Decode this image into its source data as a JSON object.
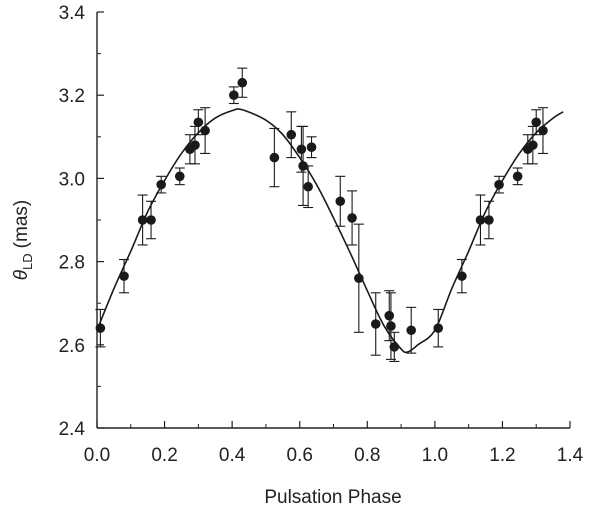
{
  "chart_data": {
    "type": "scatter",
    "xlabel": "Pulsation Phase",
    "ylabel_symbol": "θ",
    "ylabel_subscript": "LD",
    "ylabel_unit": "(mas)",
    "xlim": [
      0.0,
      1.4
    ],
    "ylim": [
      2.4,
      3.4
    ],
    "x_ticks": [
      "0.0",
      "0.2",
      "0.4",
      "0.6",
      "0.8",
      "1.0",
      "1.2",
      "1.4"
    ],
    "y_ticks": [
      "2.4",
      "2.6",
      "2.8",
      "3.0",
      "3.2",
      "3.4"
    ],
    "grid": false,
    "legend": "none",
    "colors": {
      "points": "#1a1a1a",
      "curve": "#1a1a1a",
      "axes": "#222222"
    },
    "points": [
      {
        "x": 0.01,
        "y": 2.64,
        "err": 0.045
      },
      {
        "x": 0.08,
        "y": 2.765,
        "err": 0.04
      },
      {
        "x": 0.135,
        "y": 2.9,
        "err": 0.06
      },
      {
        "x": 0.16,
        "y": 2.9,
        "err": 0.045
      },
      {
        "x": 0.19,
        "y": 2.985,
        "err": 0.02
      },
      {
        "x": 0.245,
        "y": 3.005,
        "err": 0.02
      },
      {
        "x": 0.275,
        "y": 3.07,
        "err": 0.035
      },
      {
        "x": 0.29,
        "y": 3.08,
        "err": 0.045
      },
      {
        "x": 0.3,
        "y": 3.135,
        "err": 0.03
      },
      {
        "x": 0.32,
        "y": 3.115,
        "err": 0.055
      },
      {
        "x": 0.405,
        "y": 3.2,
        "err": 0.02
      },
      {
        "x": 0.43,
        "y": 3.23,
        "err": 0.035
      },
      {
        "x": 0.525,
        "y": 3.05,
        "err": 0.07
      },
      {
        "x": 0.575,
        "y": 3.105,
        "err": 0.055
      },
      {
        "x": 0.605,
        "y": 3.07,
        "err": 0.055
      },
      {
        "x": 0.61,
        "y": 3.03,
        "err": 0.095
      },
      {
        "x": 0.625,
        "y": 2.98,
        "err": 0.05
      },
      {
        "x": 0.635,
        "y": 3.075,
        "err": 0.025
      },
      {
        "x": 0.72,
        "y": 2.945,
        "err": 0.06
      },
      {
        "x": 0.755,
        "y": 2.905,
        "err": 0.065
      },
      {
        "x": 0.775,
        "y": 2.76,
        "err": 0.13
      },
      {
        "x": 0.825,
        "y": 2.65,
        "err": 0.075
      },
      {
        "x": 0.865,
        "y": 2.67,
        "err": 0.06
      },
      {
        "x": 0.87,
        "y": 2.645,
        "err": 0.08
      },
      {
        "x": 0.88,
        "y": 2.595,
        "err": 0.035
      },
      {
        "x": 0.93,
        "y": 2.635,
        "err": 0.055
      },
      {
        "x": 1.01,
        "y": 2.64,
        "err": 0.045
      },
      {
        "x": 1.08,
        "y": 2.765,
        "err": 0.04
      },
      {
        "x": 1.135,
        "y": 2.9,
        "err": 0.06
      },
      {
        "x": 1.16,
        "y": 2.9,
        "err": 0.045
      },
      {
        "x": 1.19,
        "y": 2.985,
        "err": 0.02
      },
      {
        "x": 1.245,
        "y": 3.005,
        "err": 0.02
      },
      {
        "x": 1.275,
        "y": 3.07,
        "err": 0.035
      },
      {
        "x": 1.29,
        "y": 3.08,
        "err": 0.045
      },
      {
        "x": 1.3,
        "y": 3.135,
        "err": 0.03
      },
      {
        "x": 1.32,
        "y": 3.115,
        "err": 0.055
      }
    ],
    "fit_curve": {
      "x": [
        0.0,
        0.05,
        0.1,
        0.15,
        0.2,
        0.25,
        0.3,
        0.35,
        0.4,
        0.43,
        0.5,
        0.55,
        0.6,
        0.65,
        0.7,
        0.75,
        0.8,
        0.85,
        0.9,
        0.92,
        0.95,
        1.0,
        1.05,
        1.1,
        1.15,
        1.2,
        1.25,
        1.3,
        1.35,
        1.38
      ],
      "y": [
        2.635,
        2.735,
        2.825,
        2.92,
        2.995,
        3.06,
        3.11,
        3.145,
        3.163,
        3.165,
        3.14,
        3.105,
        3.05,
        2.985,
        2.905,
        2.82,
        2.73,
        2.645,
        2.59,
        2.583,
        2.6,
        2.635,
        2.735,
        2.825,
        2.92,
        2.995,
        3.06,
        3.11,
        3.145,
        3.16
      ]
    }
  }
}
